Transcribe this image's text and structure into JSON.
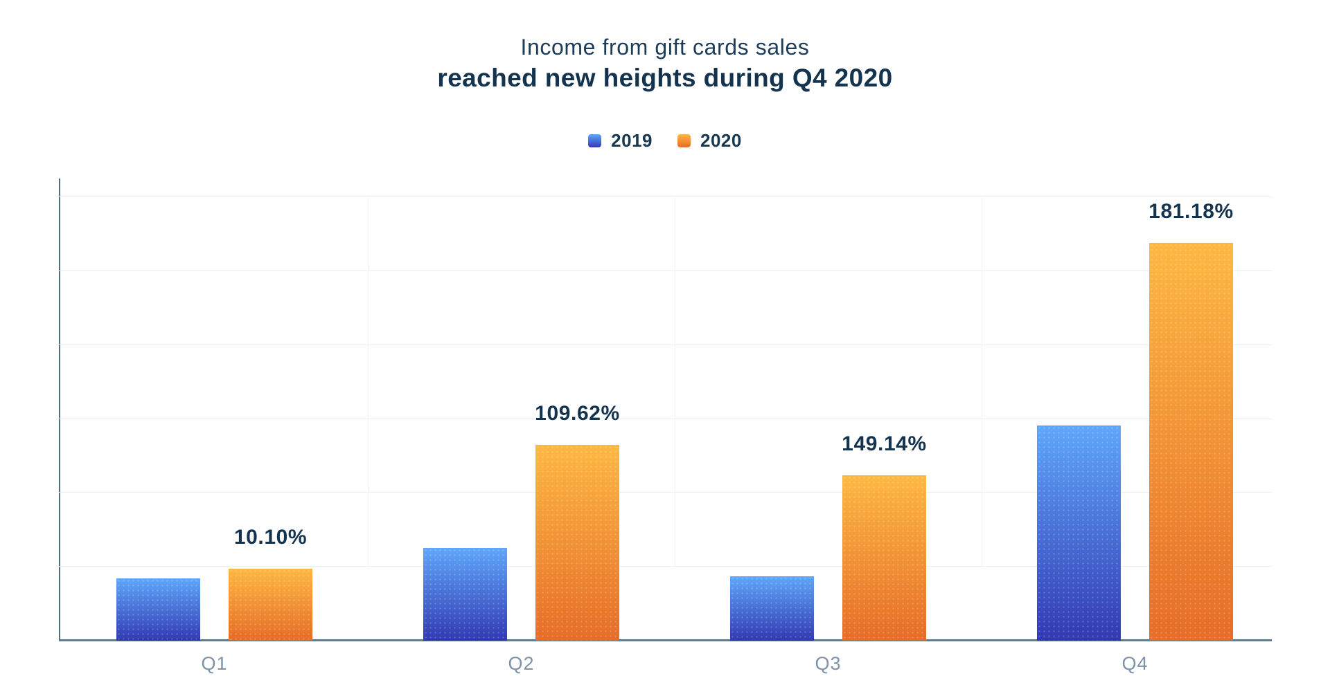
{
  "page": {
    "background": "#ffffff"
  },
  "title": {
    "line1": "Income from gift cards sales",
    "line2": "reached new heights during Q4 2020"
  },
  "legend": {
    "items": [
      {
        "label": "2019",
        "swatch_top": "#5fa7fa",
        "swatch_bottom": "#3239b2"
      },
      {
        "label": "2020",
        "swatch_top": "#fdb843",
        "swatch_bottom": "#e66d28"
      }
    ]
  },
  "chart_data": {
    "type": "bar",
    "title": "Income from gift cards sales reached new heights during Q4 2020",
    "categories": [
      "Q1",
      "Q2",
      "Q3",
      "Q4"
    ],
    "series": [
      {
        "name": "2019",
        "values": [
          0.84,
          1.25,
          0.87,
          2.91
        ],
        "gradient_top": "#5fa7fa",
        "gradient_bottom": "#3239b2"
      },
      {
        "name": "2020",
        "values": [
          0.97,
          2.65,
          2.24,
          5.38
        ],
        "gradient_top": "#fdb843",
        "gradient_bottom": "#e66d28"
      }
    ],
    "value_labels": {
      "series": "2020",
      "text": [
        "10.10%",
        "109.62%",
        "149.14%",
        "181.18%"
      ]
    },
    "y_axis": {
      "min": 0,
      "max": 6.25,
      "gridline_step": 1,
      "tick_labels_visible": false
    },
    "x_axis": {
      "tick_labels": [
        "Q1",
        "Q2",
        "Q3",
        "Q4"
      ]
    },
    "grid": {
      "horizontal_gridlines": 6,
      "vertical_separators": 3
    },
    "legend_position": "top",
    "note": "Vertical axis has no printed tick labels; series values estimated in gridline units (1 unit = one gridline spacing). Bold labels above 2020 bars are the printed percentages."
  },
  "colors": {
    "title_text": "#1c3c58",
    "bold_text": "#14334e",
    "category_label": "#7e92a8",
    "axis_line": "#5f7c8b",
    "gridline": "#e9eef3",
    "blue_top": "#5fa7fa",
    "blue_bottom": "#3239b2",
    "orange_top": "#fdb843",
    "orange_bottom": "#e66d28"
  }
}
